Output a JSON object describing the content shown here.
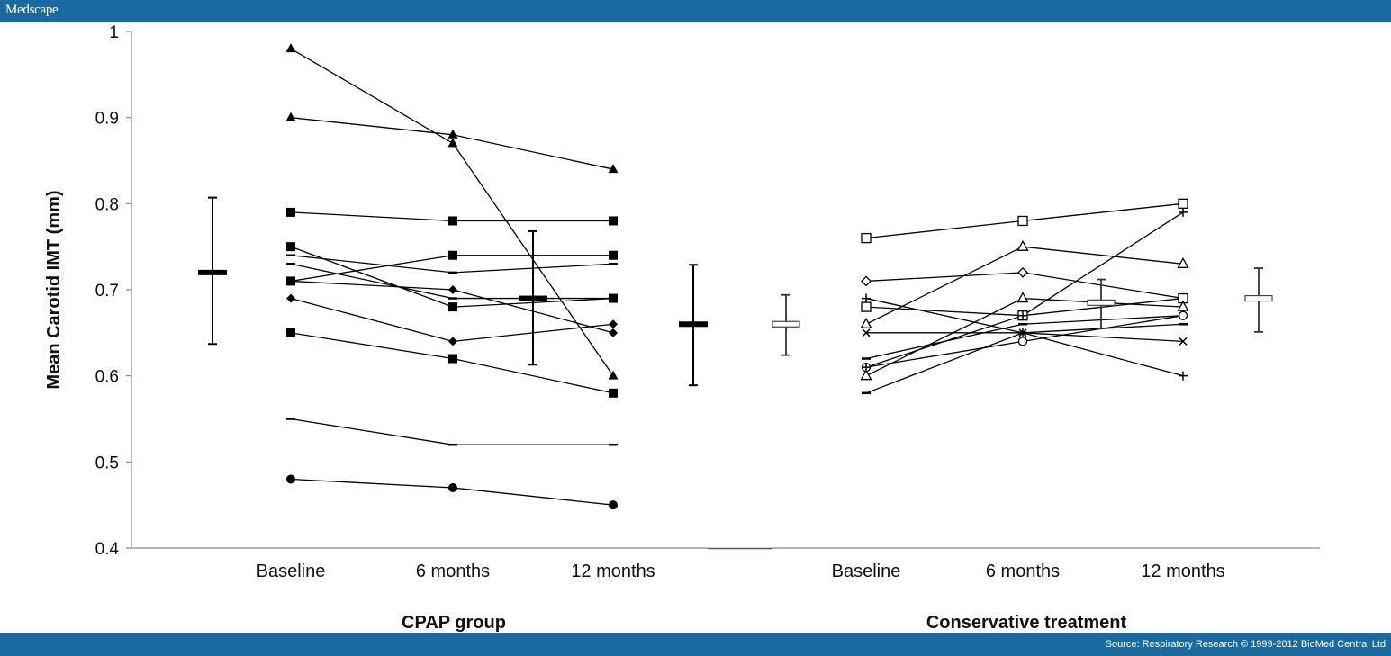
{
  "header": {
    "brand": "Medscape"
  },
  "footer": {
    "source": "Source: Respiratory Research © 1999-2012 BioMed Central Ltd"
  },
  "chart_data": {
    "type": "line",
    "title": "",
    "ylabel": "Mean Carotid IMT (mm)",
    "ylim": [
      0.4,
      1
    ],
    "y_ticks": [
      "0.4",
      "0.5",
      "0.6",
      "0.7",
      "0.8",
      "0.9",
      "1"
    ],
    "groups": [
      {
        "name": "CPAP group",
        "categories": [
          "Baseline",
          "6 months",
          "12 months"
        ],
        "series": [
          {
            "marker": "filled-triangle",
            "values": [
              0.98,
              0.87,
              0.6
            ]
          },
          {
            "marker": "filled-triangle",
            "values": [
              0.9,
              0.88,
              0.84
            ]
          },
          {
            "marker": "filled-square",
            "values": [
              0.79,
              0.78,
              0.78
            ]
          },
          {
            "marker": "filled-square",
            "values": [
              0.75,
              0.68,
              0.69
            ]
          },
          {
            "marker": "dash",
            "values": [
              0.74,
              0.72,
              0.73
            ]
          },
          {
            "marker": "dash",
            "values": [
              0.73,
              0.69,
              0.69
            ]
          },
          {
            "marker": "filled-square",
            "values": [
              0.71,
              0.74,
              0.74
            ]
          },
          {
            "marker": "filled-diamond",
            "values": [
              0.71,
              0.7,
              0.65
            ]
          },
          {
            "marker": "filled-diamond",
            "values": [
              0.69,
              0.64,
              0.66
            ]
          },
          {
            "marker": "filled-square",
            "values": [
              0.65,
              0.62,
              0.58
            ]
          },
          {
            "marker": "dash",
            "values": [
              0.55,
              0.52,
              0.52
            ]
          },
          {
            "marker": "filled-circle",
            "values": [
              0.48,
              0.47,
              0.45
            ]
          }
        ],
        "summary_bars": [
          {
            "style": "filled",
            "mean": 0.72,
            "low": 0.637,
            "high": 0.807
          },
          {
            "style": "filled",
            "mean": 0.69,
            "low": 0.613,
            "high": 0.768
          },
          {
            "style": "filled",
            "mean": 0.66,
            "low": 0.589,
            "high": 0.729
          }
        ]
      },
      {
        "name": "Conservative treatment",
        "categories": [
          "Baseline",
          "6 months",
          "12 months"
        ],
        "series": [
          {
            "marker": "open-square",
            "values": [
              0.76,
              0.78,
              0.8
            ]
          },
          {
            "marker": "open-diamond",
            "values": [
              0.71,
              0.72,
              0.69
            ]
          },
          {
            "marker": "plus",
            "values": [
              0.69,
              0.65,
              0.6
            ]
          },
          {
            "marker": "open-square",
            "values": [
              0.68,
              0.67,
              0.69
            ]
          },
          {
            "marker": "open-triangle",
            "values": [
              0.66,
              0.75,
              0.73
            ]
          },
          {
            "marker": "cross",
            "values": [
              0.65,
              0.65,
              0.64
            ]
          },
          {
            "marker": "dash",
            "values": [
              0.62,
              0.66,
              0.67
            ]
          },
          {
            "marker": "open-circle",
            "values": [
              0.61,
              0.64,
              0.67
            ]
          },
          {
            "marker": "open-triangle",
            "values": [
              0.6,
              0.69,
              0.68
            ]
          },
          {
            "marker": "dash",
            "values": [
              0.58,
              0.65,
              0.66
            ]
          },
          {
            "marker": "plus",
            "values": [
              0.61,
              0.67,
              0.79
            ]
          }
        ],
        "summary_bars": [
          {
            "style": "open",
            "mean": 0.66,
            "low": 0.624,
            "high": 0.694
          },
          {
            "style": "open",
            "mean": 0.685,
            "low": 0.655,
            "high": 0.712
          },
          {
            "style": "open",
            "mean": 0.69,
            "low": 0.651,
            "high": 0.725
          }
        ]
      }
    ]
  }
}
